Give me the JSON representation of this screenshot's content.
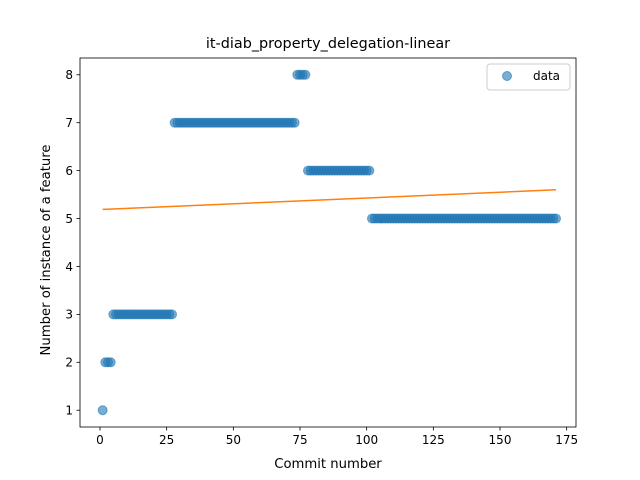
{
  "chart_data": {
    "type": "scatter",
    "title": "it-diab_property_delegation-linear",
    "xlabel": "Commit number",
    "ylabel": "Number of instance of a feature",
    "xlim": [
      -7.5,
      178.5
    ],
    "ylim": [
      0.65,
      8.35
    ],
    "xticks": [
      0,
      25,
      50,
      75,
      100,
      125,
      150,
      175
    ],
    "yticks": [
      1,
      2,
      3,
      4,
      5,
      6,
      7,
      8
    ],
    "legend_position": "top-right",
    "series": [
      {
        "name": "data",
        "kind": "scatter",
        "color": "#1f77b4",
        "segments": [
          {
            "x_start": 1,
            "x_end": 1,
            "y": 1
          },
          {
            "x_start": 2,
            "x_end": 4,
            "y": 2
          },
          {
            "x_start": 5,
            "x_end": 27,
            "y": 3
          },
          {
            "x_start": 28,
            "x_end": 73,
            "y": 7
          },
          {
            "x_start": 74,
            "x_end": 77,
            "y": 8
          },
          {
            "x_start": 78,
            "x_end": 101,
            "y": 6
          },
          {
            "x_start": 102,
            "x_end": 171,
            "y": 5
          }
        ]
      },
      {
        "kind": "line",
        "color": "#ff7f0e",
        "x": [
          1,
          171
        ],
        "y": [
          5.19,
          5.6
        ]
      }
    ]
  }
}
